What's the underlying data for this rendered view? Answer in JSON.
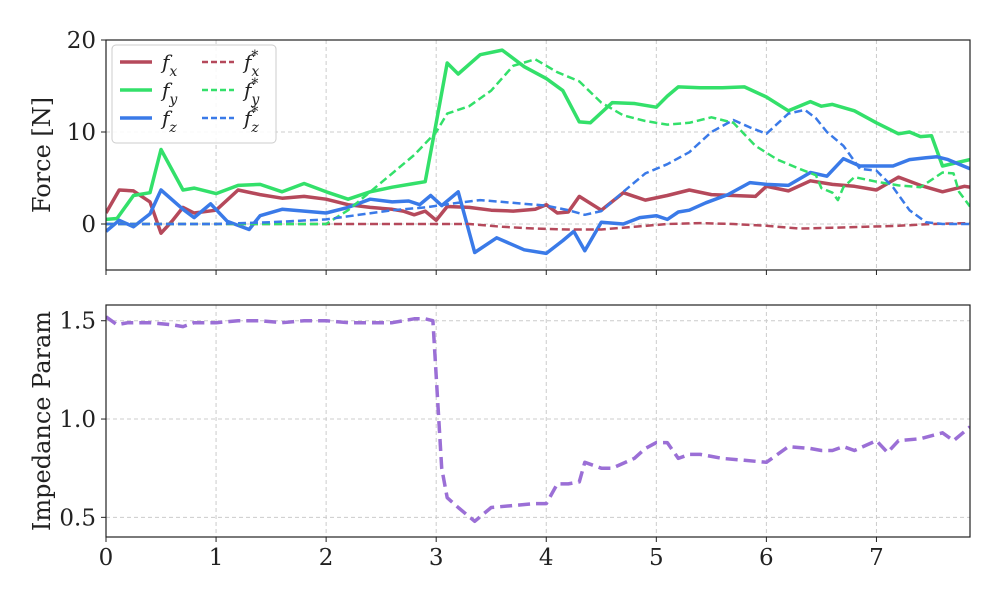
{
  "chart_data": [
    {
      "type": "line",
      "ylabel": "Force [N]",
      "xlim": [
        0,
        7.85
      ],
      "ylim": [
        -5,
        20
      ],
      "xticks": [
        "0",
        "1",
        "2",
        "3",
        "4",
        "5",
        "6",
        "7"
      ],
      "yticks": [
        "0",
        "10",
        "20"
      ],
      "grid": true,
      "legend": "top-left",
      "series": [
        {
          "name": "f_x",
          "color": "#b5495b",
          "style": "solid",
          "x": [
            0,
            0.12,
            0.25,
            0.4,
            0.5,
            0.6,
            0.7,
            0.8,
            1.0,
            1.2,
            1.4,
            1.6,
            1.8,
            2.0,
            2.2,
            2.4,
            2.6,
            2.7,
            2.8,
            2.9,
            3.0,
            3.1,
            3.3,
            3.5,
            3.7,
            3.9,
            4.0,
            4.1,
            4.2,
            4.3,
            4.5,
            4.7,
            4.9,
            5.1,
            5.3,
            5.5,
            5.7,
            5.9,
            6.0,
            6.2,
            6.4,
            6.6,
            6.8,
            7.0,
            7.2,
            7.4,
            7.6,
            7.8,
            7.85
          ],
          "y": [
            1.2,
            3.7,
            3.6,
            2.4,
            -1.0,
            0.3,
            1.8,
            1.2,
            1.5,
            3.7,
            3.2,
            2.8,
            3.0,
            2.7,
            2.1,
            1.8,
            1.6,
            1.4,
            1.0,
            1.4,
            0.4,
            1.9,
            1.8,
            1.5,
            1.4,
            1.6,
            2.1,
            1.2,
            1.3,
            3.0,
            1.5,
            3.4,
            2.6,
            3.1,
            3.7,
            3.2,
            3.1,
            3.0,
            4.1,
            3.6,
            4.7,
            4.3,
            4.1,
            3.7,
            5.1,
            4.2,
            3.5,
            4.1,
            4.0
          ]
        },
        {
          "name": "f_y",
          "color": "#33e06a",
          "style": "solid",
          "x": [
            0,
            0.1,
            0.25,
            0.4,
            0.5,
            0.7,
            0.8,
            1.0,
            1.2,
            1.4,
            1.6,
            1.8,
            2.0,
            2.2,
            2.4,
            2.6,
            2.8,
            2.9,
            3.0,
            3.1,
            3.2,
            3.4,
            3.6,
            3.8,
            4.0,
            4.15,
            4.3,
            4.4,
            4.6,
            4.8,
            5.0,
            5.1,
            5.2,
            5.4,
            5.6,
            5.8,
            6.0,
            6.2,
            6.4,
            6.5,
            6.6,
            6.8,
            7.0,
            7.2,
            7.3,
            7.4,
            7.5,
            7.6,
            7.85
          ],
          "y": [
            0.5,
            0.6,
            3.1,
            3.4,
            8.1,
            3.7,
            3.9,
            3.3,
            4.2,
            4.3,
            3.5,
            4.4,
            3.5,
            2.7,
            3.5,
            4.0,
            4.4,
            4.6,
            11.0,
            17.5,
            16.3,
            18.4,
            18.9,
            17.1,
            15.8,
            14.5,
            11.1,
            11.0,
            13.2,
            13.1,
            12.7,
            13.9,
            14.9,
            14.8,
            14.8,
            14.9,
            13.8,
            12.3,
            13.3,
            12.8,
            13.0,
            12.3,
            11.0,
            9.8,
            10.0,
            9.5,
            9.6,
            6.3,
            7.0
          ]
        },
        {
          "name": "f_z",
          "color": "#3a7ae8",
          "style": "solid",
          "x": [
            0,
            0.12,
            0.25,
            0.4,
            0.5,
            0.7,
            0.8,
            0.95,
            1.1,
            1.3,
            1.4,
            1.6,
            1.8,
            2.0,
            2.2,
            2.4,
            2.6,
            2.75,
            2.85,
            2.95,
            3.05,
            3.2,
            3.35,
            3.55,
            3.8,
            4.0,
            4.15,
            4.25,
            4.35,
            4.5,
            4.7,
            4.85,
            5.0,
            5.1,
            5.2,
            5.3,
            5.45,
            5.65,
            5.85,
            6.0,
            6.2,
            6.4,
            6.55,
            6.7,
            6.85,
            7.0,
            7.15,
            7.3,
            7.45,
            7.55,
            7.65,
            7.85
          ],
          "y": [
            -0.8,
            0.4,
            -0.3,
            1.1,
            3.7,
            1.6,
            0.7,
            2.2,
            0.3,
            -0.6,
            0.9,
            1.6,
            1.4,
            1.2,
            1.8,
            2.7,
            2.4,
            2.5,
            2.1,
            3.1,
            2.0,
            3.5,
            -3.1,
            -1.5,
            -2.8,
            -3.2,
            -1.8,
            -0.8,
            -2.9,
            0.2,
            0.0,
            0.7,
            0.9,
            0.5,
            1.3,
            1.5,
            2.3,
            3.2,
            4.5,
            4.3,
            4.2,
            5.6,
            5.2,
            7.1,
            6.3,
            6.3,
            6.3,
            7.0,
            7.2,
            7.3,
            7.0,
            6.0
          ]
        },
        {
          "name": "f_x*",
          "color": "#b5495b",
          "style": "dashed",
          "x": [
            0,
            0.5,
            1.0,
            1.5,
            2.0,
            2.5,
            3.0,
            3.3,
            3.6,
            3.9,
            4.2,
            4.5,
            4.8,
            5.1,
            5.4,
            5.7,
            6.0,
            6.3,
            6.6,
            6.9,
            7.2,
            7.5,
            7.85
          ],
          "y": [
            0,
            0,
            0,
            0,
            0,
            0,
            0,
            0,
            -0.3,
            -0.5,
            -0.6,
            -0.6,
            -0.3,
            0.0,
            0.1,
            0.0,
            -0.2,
            -0.5,
            -0.4,
            -0.3,
            -0.2,
            0.0,
            0.1
          ]
        },
        {
          "name": "f_y*",
          "color": "#33e06a",
          "style": "dashed",
          "x": [
            0,
            0.5,
            1.0,
            1.5,
            2.0,
            2.2,
            2.4,
            2.6,
            2.8,
            3.0,
            3.1,
            3.3,
            3.5,
            3.7,
            3.9,
            4.1,
            4.3,
            4.5,
            4.7,
            4.9,
            5.1,
            5.3,
            5.5,
            5.7,
            5.9,
            6.1,
            6.3,
            6.45,
            6.5,
            6.6,
            6.65,
            6.7,
            6.8,
            7.0,
            7.2,
            7.4,
            7.6,
            7.7,
            7.75,
            7.85
          ],
          "y": [
            0,
            0,
            0,
            0,
            0,
            1.5,
            3.5,
            5.5,
            7.5,
            10.0,
            12.0,
            12.8,
            14.5,
            17.2,
            17.9,
            16.5,
            15.5,
            13.2,
            11.8,
            11.2,
            10.8,
            11.0,
            11.6,
            11.0,
            8.5,
            7.0,
            6.0,
            5.3,
            3.9,
            3.4,
            2.6,
            4.0,
            5.1,
            4.6,
            4.2,
            4.0,
            5.6,
            5.5,
            3.5,
            1.9
          ]
        },
        {
          "name": "f_z*",
          "color": "#3a7ae8",
          "style": "dashed",
          "x": [
            0,
            0.5,
            1.0,
            1.5,
            2.0,
            2.3,
            2.6,
            2.9,
            3.2,
            3.4,
            3.6,
            3.8,
            4.0,
            4.2,
            4.35,
            4.5,
            4.7,
            4.9,
            5.1,
            5.3,
            5.5,
            5.7,
            5.85,
            6.0,
            6.2,
            6.35,
            6.45,
            6.55,
            6.7,
            6.85,
            7.0,
            7.15,
            7.3,
            7.45,
            7.6,
            7.85
          ],
          "y": [
            0,
            0,
            0,
            0.2,
            0.5,
            1.0,
            1.5,
            1.8,
            2.3,
            2.6,
            2.4,
            2.2,
            2.0,
            1.5,
            1.0,
            1.4,
            3.5,
            5.5,
            6.5,
            7.8,
            10.0,
            11.3,
            10.5,
            9.8,
            12.0,
            12.4,
            11.5,
            10.0,
            8.5,
            6.0,
            5.8,
            4.0,
            1.5,
            0.2,
            0.0,
            0.0
          ]
        }
      ]
    },
    {
      "type": "line",
      "ylabel": "Impedance Param",
      "xlim": [
        0,
        7.85
      ],
      "ylim": [
        0.4,
        1.58
      ],
      "xticks": [
        "0",
        "1",
        "2",
        "3",
        "4",
        "5",
        "6",
        "7"
      ],
      "yticks": [
        "0.5",
        "1.0",
        "1.5"
      ],
      "grid": true,
      "series": [
        {
          "color": "#9b6fd6",
          "style": "dashed",
          "x": [
            0,
            0.1,
            0.2,
            0.4,
            0.6,
            0.7,
            0.8,
            1.0,
            1.2,
            1.4,
            1.6,
            1.8,
            2.0,
            2.2,
            2.4,
            2.6,
            2.8,
            2.9,
            2.97,
            3.05,
            3.1,
            3.2,
            3.35,
            3.5,
            3.7,
            3.9,
            4.0,
            4.1,
            4.2,
            4.3,
            4.35,
            4.5,
            4.6,
            4.8,
            4.9,
            5.0,
            5.1,
            5.2,
            5.3,
            5.4,
            5.5,
            5.6,
            5.8,
            6.0,
            6.2,
            6.4,
            6.5,
            6.6,
            6.7,
            6.8,
            7.0,
            7.1,
            7.2,
            7.4,
            7.6,
            7.7,
            7.85
          ],
          "y": [
            1.52,
            1.48,
            1.49,
            1.49,
            1.48,
            1.47,
            1.49,
            1.49,
            1.5,
            1.5,
            1.49,
            1.5,
            1.5,
            1.49,
            1.49,
            1.49,
            1.51,
            1.51,
            1.5,
            0.75,
            0.6,
            0.55,
            0.48,
            0.55,
            0.56,
            0.57,
            0.57,
            0.67,
            0.67,
            0.68,
            0.78,
            0.75,
            0.75,
            0.8,
            0.85,
            0.88,
            0.88,
            0.8,
            0.82,
            0.82,
            0.81,
            0.8,
            0.79,
            0.78,
            0.86,
            0.85,
            0.84,
            0.84,
            0.86,
            0.84,
            0.89,
            0.83,
            0.89,
            0.9,
            0.93,
            0.89,
            0.96
          ]
        }
      ]
    }
  ],
  "legend_labels": [
    {
      "base": "f",
      "sub": "x",
      "sup": ""
    },
    {
      "base": "f",
      "sub": "y",
      "sup": ""
    },
    {
      "base": "f",
      "sub": "z",
      "sup": ""
    },
    {
      "base": "f",
      "sub": "x",
      "sup": "*"
    },
    {
      "base": "f",
      "sub": "y",
      "sup": "*"
    },
    {
      "base": "f",
      "sub": "z",
      "sup": "*"
    }
  ]
}
